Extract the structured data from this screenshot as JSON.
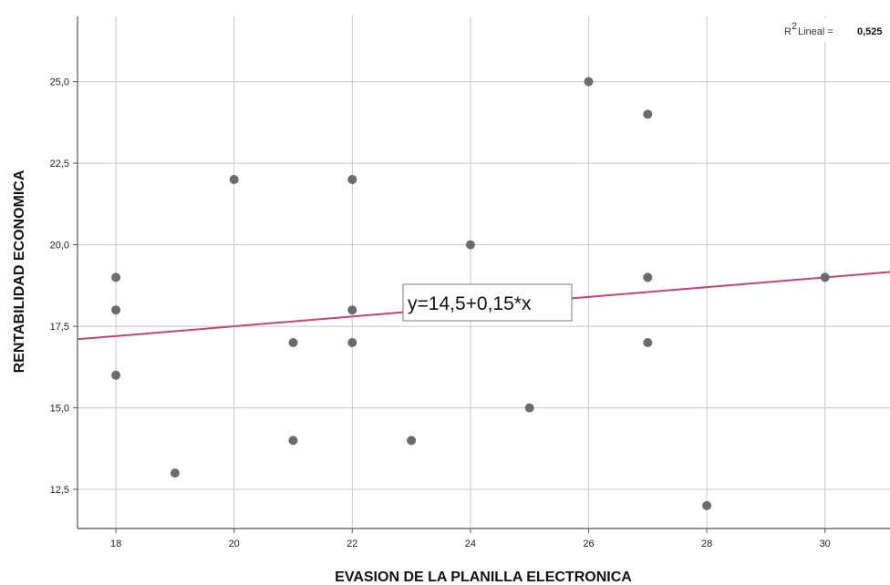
{
  "chart_data": {
    "type": "scatter",
    "xlabel": "EVASION DE LA PLANILLA ELECTRONICA",
    "ylabel": "RENTABILIDAD ECONOMICA",
    "xlim": [
      17.35,
      31.1
    ],
    "ylim": [
      11.3,
      27.0
    ],
    "x_ticks": [
      18,
      20,
      22,
      24,
      26,
      28,
      30
    ],
    "x_tick_labels": [
      "18",
      "20",
      "22",
      "24",
      "26",
      "28",
      "30"
    ],
    "y_ticks": [
      12.5,
      15.0,
      17.5,
      20.0,
      22.5,
      25.0
    ],
    "y_tick_labels": [
      "12,5",
      "15,0",
      "17,5",
      "20,0",
      "22,5",
      "25,0"
    ],
    "grid": true,
    "points": [
      {
        "x": 18,
        "y": 19
      },
      {
        "x": 18,
        "y": 18
      },
      {
        "x": 18,
        "y": 16
      },
      {
        "x": 19,
        "y": 13
      },
      {
        "x": 20,
        "y": 22
      },
      {
        "x": 21,
        "y": 17
      },
      {
        "x": 21,
        "y": 14
      },
      {
        "x": 22,
        "y": 22
      },
      {
        "x": 22,
        "y": 18
      },
      {
        "x": 22,
        "y": 17
      },
      {
        "x": 23,
        "y": 14
      },
      {
        "x": 24,
        "y": 20
      },
      {
        "x": 25,
        "y": 15
      },
      {
        "x": 26,
        "y": 25
      },
      {
        "x": 27,
        "y": 24
      },
      {
        "x": 27,
        "y": 19
      },
      {
        "x": 27,
        "y": 17
      },
      {
        "x": 28,
        "y": 12
      },
      {
        "x": 30,
        "y": 19
      }
    ],
    "fit_line": {
      "intercept": 14.5,
      "slope": 0.15,
      "equation": "y=14,5+0,15*x"
    },
    "r2": {
      "label": "Lineal = ",
      "value": "0,525"
    },
    "colors": {
      "points": "#6b6b6b",
      "fit_line": "#c2456a",
      "grid": "#c8c8c8",
      "axis": "#555555"
    }
  }
}
